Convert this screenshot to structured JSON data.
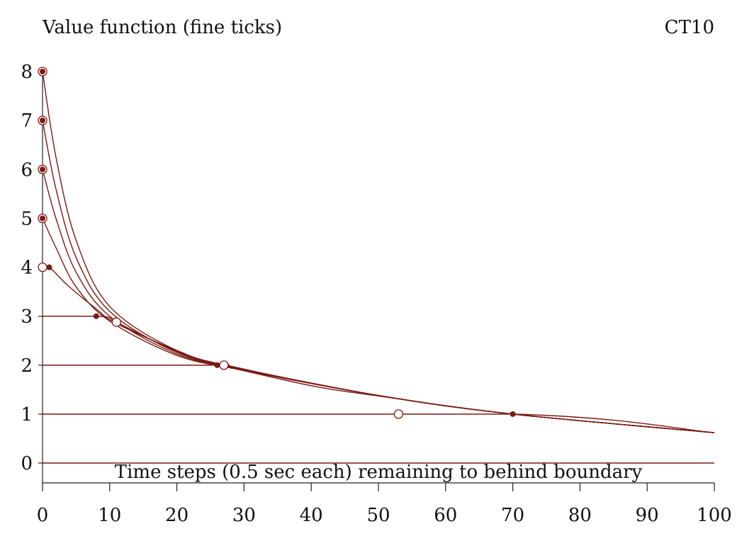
{
  "chart_data": {
    "type": "line",
    "title": "Value function (fine ticks)",
    "subtitle": "CT10",
    "xlabel": "Time steps (0.5 sec each) remaining to behind boundary",
    "ylabel": "",
    "xlim": [
      0,
      100
    ],
    "ylim": [
      0,
      8
    ],
    "x_ticks": [
      "0",
      "10",
      "20",
      "30",
      "40",
      "50",
      "60",
      "70",
      "80",
      "90",
      "100"
    ],
    "y_ticks": [
      "0",
      "1",
      "2",
      "3",
      "4",
      "5",
      "6",
      "7",
      "8"
    ],
    "grid": false,
    "color": "#7a1a14",
    "series": [
      {
        "start_value": 8,
        "x": [
          0,
          2,
          5,
          10,
          20,
          30,
          50,
          70,
          100
        ],
        "y": [
          8,
          6.25,
          4.55,
          3.2,
          2.3,
          1.92,
          1.38,
          1.0,
          0.62
        ]
      },
      {
        "start_value": 7,
        "x": [
          0,
          2,
          5,
          10,
          20,
          30,
          50,
          70,
          100
        ],
        "y": [
          7,
          5.6,
          4.2,
          3.1,
          2.26,
          1.91,
          1.38,
          1.0,
          0.62
        ]
      },
      {
        "start_value": 6,
        "x": [
          0,
          2,
          5,
          10,
          20,
          30,
          50,
          70,
          100
        ],
        "y": [
          6,
          5.0,
          3.9,
          3.0,
          2.23,
          1.9,
          1.38,
          1.0,
          0.62
        ]
      },
      {
        "start_value": 5,
        "x": [
          0,
          2,
          5,
          10,
          20,
          30,
          50,
          70,
          100
        ],
        "y": [
          5,
          4.4,
          3.6,
          2.9,
          2.2,
          1.89,
          1.38,
          1.0,
          0.62
        ]
      },
      {
        "start_value": 4,
        "x": [
          0,
          1,
          4,
          8,
          11,
          20,
          27,
          50,
          70,
          100
        ],
        "y": [
          4,
          4,
          3.6,
          3.15,
          2.85,
          2.3,
          2.0,
          1.38,
          1.0,
          0.62
        ]
      },
      {
        "start_value": 3,
        "x": [
          0,
          8,
          10,
          11,
          20,
          27,
          50,
          70,
          100
        ],
        "y": [
          3,
          3,
          2.97,
          2.88,
          2.28,
          2.0,
          1.38,
          1.0,
          0.62
        ]
      },
      {
        "start_value": 2,
        "x": [
          0,
          26,
          27,
          40,
          50,
          70,
          100
        ],
        "y": [
          2,
          2,
          1.98,
          1.58,
          1.37,
          1.0,
          0.62
        ]
      },
      {
        "start_value": 1,
        "x": [
          0,
          70,
          100
        ],
        "y": [
          1,
          1,
          0.62
        ]
      },
      {
        "start_value": 0,
        "x": [
          0,
          100
        ],
        "y": [
          0,
          0
        ]
      }
    ],
    "markers": {
      "filled": [
        [
          0,
          8
        ],
        [
          0,
          7
        ],
        [
          0,
          6
        ],
        [
          0,
          5
        ],
        [
          1,
          4
        ],
        [
          8,
          3
        ],
        [
          26,
          2
        ],
        [
          70,
          1
        ]
      ],
      "open": [
        [
          0,
          4
        ],
        [
          11,
          2.88
        ],
        [
          27,
          2
        ],
        [
          53,
          1
        ]
      ]
    }
  }
}
